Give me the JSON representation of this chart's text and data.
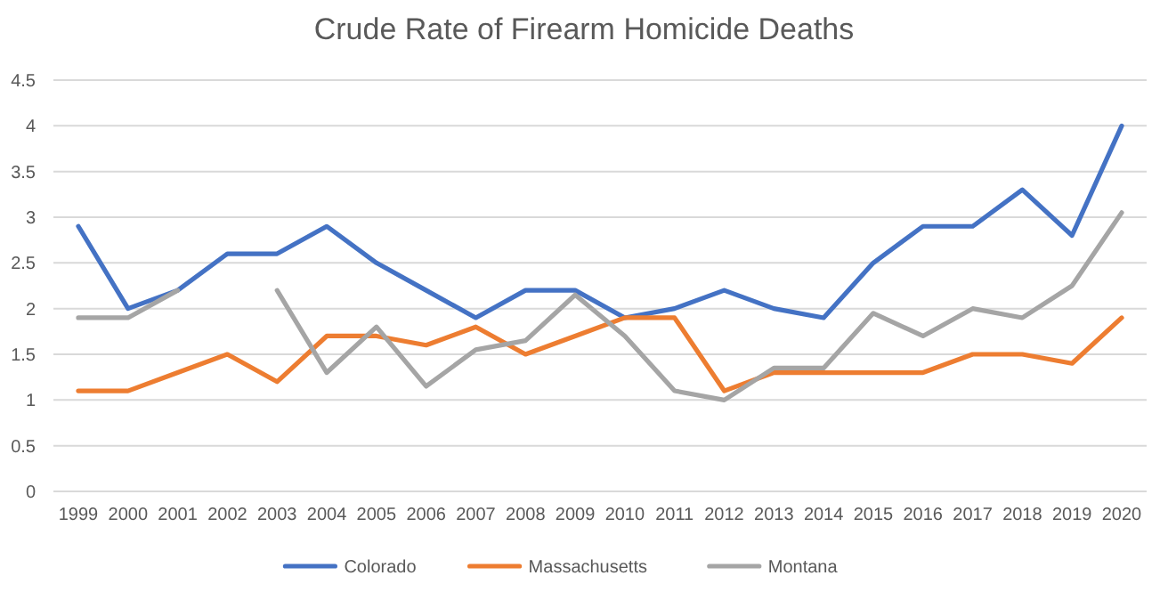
{
  "chart_data": {
    "type": "line",
    "title": "Crude Rate of Firearm Homicide Deaths",
    "categories": [
      "1999",
      "2000",
      "2001",
      "2002",
      "2003",
      "2004",
      "2005",
      "2006",
      "2007",
      "2008",
      "2009",
      "2010",
      "2011",
      "2012",
      "2013",
      "2014",
      "2015",
      "2016",
      "2017",
      "2018",
      "2019",
      "2020"
    ],
    "series": [
      {
        "name": "Colorado",
        "color": "#4472c4",
        "values": [
          2.9,
          2.0,
          2.2,
          2.6,
          2.6,
          2.9,
          2.5,
          2.2,
          1.9,
          2.2,
          2.2,
          1.9,
          2.0,
          2.2,
          2.0,
          1.9,
          2.5,
          2.9,
          2.9,
          3.3,
          2.8,
          4.0
        ]
      },
      {
        "name": "Massachusetts",
        "color": "#ed7d31",
        "values": [
          1.1,
          1.1,
          1.3,
          1.5,
          1.2,
          1.7,
          1.7,
          1.6,
          1.8,
          1.5,
          1.7,
          1.9,
          1.9,
          1.1,
          1.3,
          1.3,
          1.3,
          1.3,
          1.5,
          1.5,
          1.4,
          1.9
        ]
      },
      {
        "name": "Montana",
        "color": "#a5a5a5",
        "values": [
          1.9,
          1.9,
          2.2,
          null,
          2.2,
          1.3,
          1.8,
          1.15,
          1.55,
          1.65,
          2.15,
          1.7,
          1.1,
          1.0,
          1.35,
          1.35,
          1.95,
          1.7,
          2.0,
          1.9,
          2.25,
          3.05
        ]
      }
    ],
    "ylim": [
      0,
      4.5
    ],
    "yticks": [
      0,
      0.5,
      1,
      1.5,
      2,
      2.5,
      3,
      3.5,
      4,
      4.5
    ],
    "grid": "y",
    "legend": "bottom",
    "marker": "none",
    "line_style": "solid"
  }
}
